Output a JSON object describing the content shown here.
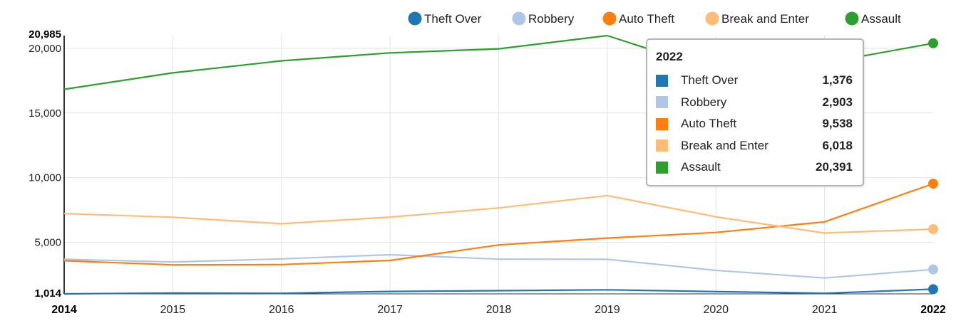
{
  "chart_data": {
    "type": "line",
    "title": "",
    "xlabel": "",
    "ylabel": "",
    "x": [
      2014,
      2015,
      2016,
      2017,
      2018,
      2019,
      2020,
      2021,
      2022
    ],
    "ylim": [
      1014,
      20985
    ],
    "y_ticks": [
      "1,014",
      "5,000",
      "10,000",
      "15,000",
      "20,000",
      "20,985"
    ],
    "x_ticks": [
      "2014",
      "2015",
      "2016",
      "2017",
      "2018",
      "2019",
      "2020",
      "2021",
      "2022"
    ],
    "grid": true,
    "legend_position": "top",
    "series": [
      {
        "name": "Theft Over",
        "color": "#1f77b4",
        "values": [
          1014,
          1080,
          1060,
          1200,
          1260,
          1330,
          1190,
          1060,
          1376
        ]
      },
      {
        "name": "Robbery",
        "color": "#aec7e8",
        "values": [
          3690,
          3480,
          3720,
          4040,
          3700,
          3690,
          2830,
          2240,
          2903
        ]
      },
      {
        "name": "Auto Theft",
        "color": "#ff7f0e",
        "values": [
          3580,
          3260,
          3280,
          3600,
          4800,
          5330,
          5760,
          6580,
          9538
        ]
      },
      {
        "name": "Break and Enter",
        "color": "#ffbb78",
        "values": [
          7220,
          6940,
          6440,
          6950,
          7660,
          8620,
          6970,
          5720,
          6018
        ]
      },
      {
        "name": "Assault",
        "color": "#2ca02c",
        "values": [
          16830,
          18100,
          19030,
          19650,
          19960,
          20985,
          18260,
          18870,
          20391
        ]
      }
    ],
    "tooltip": {
      "title": "2022",
      "rows": [
        {
          "name": "Theft Over",
          "color": "#1f77b4",
          "value": "1,376"
        },
        {
          "name": "Robbery",
          "color": "#aec7e8",
          "value": "2,903"
        },
        {
          "name": "Auto Theft",
          "color": "#ff7f0e",
          "value": "9,538"
        },
        {
          "name": "Break and Enter",
          "color": "#ffbb78",
          "value": "6,018"
        },
        {
          "name": "Assault",
          "color": "#2ca02c",
          "value": "20,391"
        }
      ]
    }
  }
}
